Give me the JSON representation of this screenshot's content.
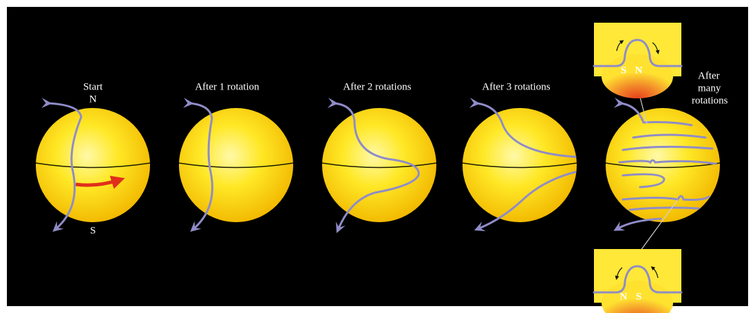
{
  "panels": [
    {
      "label": "Start",
      "north": "N",
      "south": "S"
    },
    {
      "label": "After 1 rotation"
    },
    {
      "label": "After 2 rotations"
    },
    {
      "label": "After 3 rotations"
    },
    {
      "label_lines": [
        "After",
        "many",
        "rotations"
      ]
    }
  ],
  "insets": [
    {
      "labels": [
        "S",
        "N"
      ]
    },
    {
      "labels": [
        "N",
        "S"
      ]
    }
  ]
}
